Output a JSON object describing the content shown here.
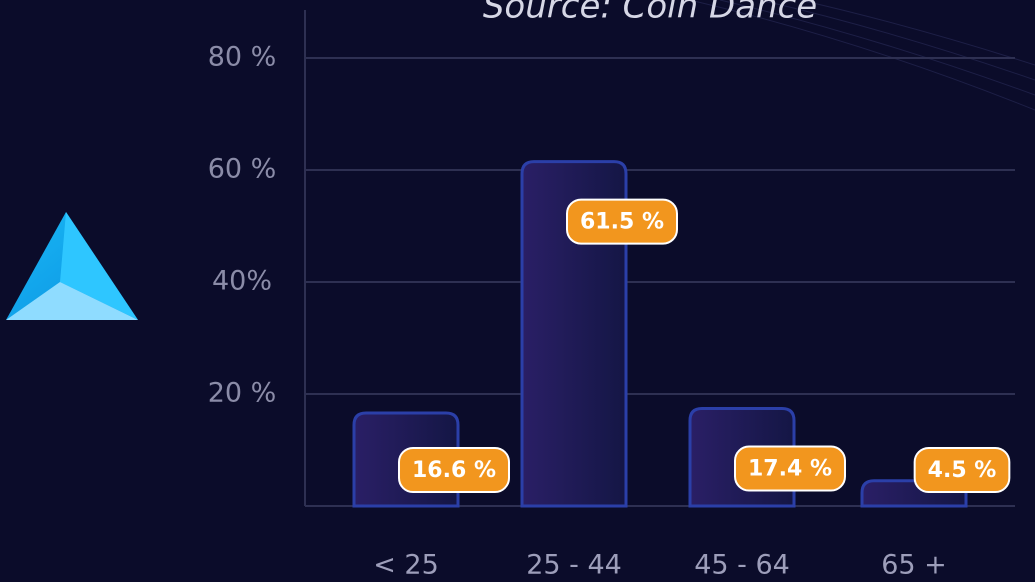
{
  "chart_data": {
    "type": "bar",
    "title": "Source:  Coin Dance",
    "categories": [
      "< 25",
      "25 - 44",
      "45 - 64",
      "65 +"
    ],
    "values": [
      16.6,
      61.5,
      17.4,
      4.5
    ],
    "value_labels": [
      "16.6 %",
      "61.5 %",
      "17.4 %",
      "4.5 %"
    ],
    "color": "#1c1a55",
    "ylim": [
      0,
      80
    ],
    "yticks": [
      {
        "value": 20,
        "label": "20 %"
      },
      {
        "value": 40,
        "label": "40%"
      },
      {
        "value": 60,
        "label": "60 %"
      },
      {
        "value": 80,
        "label": "80 %"
      }
    ],
    "grid": true
  }
}
